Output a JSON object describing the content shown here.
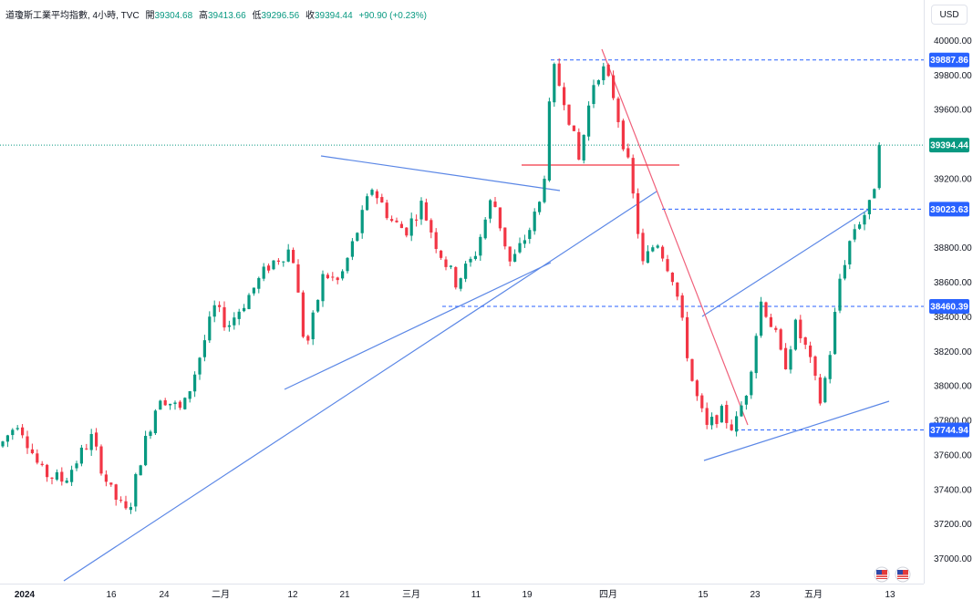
{
  "legend": {
    "title": "道瓊斯工業平均指數, 4小時, TVC",
    "open_label": "開",
    "open": "39304.68",
    "high_label": "高",
    "high": "39413.66",
    "low_label": "低",
    "low": "39296.56",
    "close_label": "收",
    "close": "39394.44",
    "change": "+90.90 (+0.23%)"
  },
  "currency": "USD",
  "colors": {
    "up": "#089981",
    "down": "#f23645",
    "trendline": "#5b87e6",
    "red_line": "#f0607a",
    "dashed": "#3d6fd6",
    "grid_dot": "#089981"
  },
  "chart_data": {
    "type": "candlestick",
    "y_axis": {
      "range": [
        36900,
        40150
      ],
      "ticks": [
        "40000.00",
        "39800.00",
        "39600.00",
        "39200.00",
        "38800.00",
        "38600.00",
        "38400.00",
        "38200.00",
        "38000.00",
        "37800.00",
        "37600.00",
        "37400.00",
        "37200.00",
        "37000.00"
      ]
    },
    "x_axis": {
      "labels": [
        "2024",
        "16",
        "24",
        "二月",
        "12",
        "21",
        "三月",
        "11",
        "19",
        "四月",
        "15",
        "23",
        "五月",
        "13"
      ]
    },
    "price_labels": [
      {
        "value": 39887.86,
        "text": "39887.86",
        "style": "dashed",
        "color": "#2962ff"
      },
      {
        "value": 39394.44,
        "text": "39394.44",
        "style": "dotted",
        "color": "#089981"
      },
      {
        "value": 39023.63,
        "text": "39023.63",
        "style": "dashed",
        "color": "#2962ff"
      },
      {
        "value": 38460.39,
        "text": "38460.39",
        "style": "dashed",
        "color": "#2962ff"
      },
      {
        "value": 37744.94,
        "text": "37744.94",
        "style": "dashed",
        "color": "#2962ff"
      }
    ],
    "key_points": [
      {
        "x": "2024",
        "close": 37700
      },
      {
        "x": "16",
        "close": 37250
      },
      {
        "x": "24",
        "close": 37900
      },
      {
        "x": "二月",
        "close": 38450
      },
      {
        "x": "12",
        "close": 38700
      },
      {
        "x": "21",
        "close": 39050
      },
      {
        "x": "三月",
        "close": 38950
      },
      {
        "x": "11",
        "close": 38800
      },
      {
        "x": "19",
        "close": 39100
      },
      {
        "x": "四月",
        "close": 39250
      },
      {
        "x": "15",
        "close": 38250
      },
      {
        "x": "23",
        "close": 38350
      },
      {
        "x": "五月",
        "close": 38000
      },
      {
        "x": "13",
        "close": 39394.44
      }
    ]
  }
}
